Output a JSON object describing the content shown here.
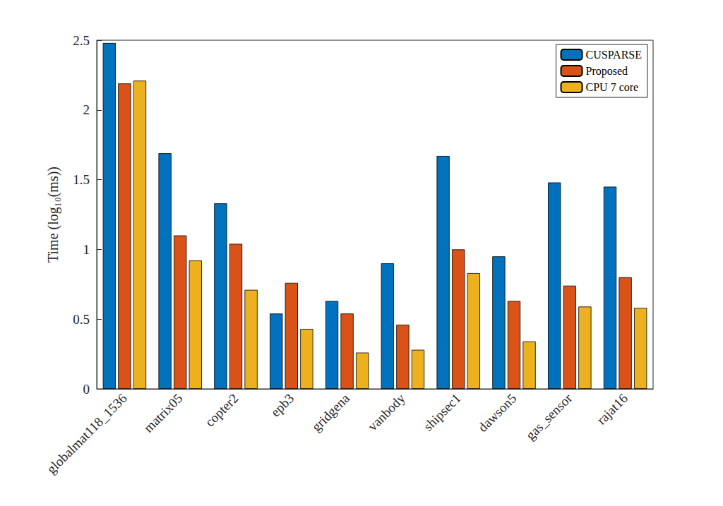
{
  "chart_data": {
    "type": "bar",
    "y_label": "Time (log₁₀(ms))",
    "categories": [
      "globalmat118_1536",
      "matrix05",
      "copter2",
      "epb3",
      "gridgena",
      "vanbody",
      "shipsec1",
      "dawson5",
      "gas_sensor",
      "rajat16"
    ],
    "series": [
      {
        "name": "CUSPARSE",
        "color": "#0072BD",
        "values": [
          2.48,
          1.69,
          1.33,
          0.54,
          0.63,
          0.9,
          1.67,
          0.95,
          1.48,
          1.45
        ]
      },
      {
        "name": "Proposed",
        "color": "#D95319",
        "values": [
          2.19,
          1.1,
          1.04,
          0.76,
          0.54,
          0.46,
          1.0,
          0.63,
          0.74,
          0.8
        ]
      },
      {
        "name": "CPU 7 core",
        "color": "#EDB120",
        "values": [
          2.21,
          0.92,
          0.71,
          0.43,
          0.26,
          0.28,
          0.83,
          0.34,
          0.59,
          0.58
        ]
      }
    ],
    "ylim": [
      0,
      2.5
    ],
    "yticks": [
      0,
      0.5,
      1,
      1.5,
      2,
      2.5
    ],
    "grid": false,
    "legend": "upper right"
  }
}
